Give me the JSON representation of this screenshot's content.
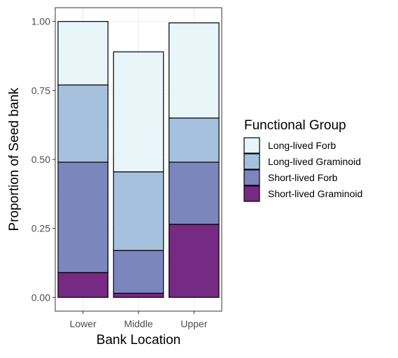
{
  "chart_data": {
    "type": "bar",
    "stacked": true,
    "categories": [
      "Lower",
      "Middle",
      "Upper"
    ],
    "series": [
      {
        "name": "Short-lived Graminoid",
        "color": "#762a83",
        "values": [
          0.09,
          0.015,
          0.265
        ]
      },
      {
        "name": "Short-lived Forb",
        "color": "#7b86bd",
        "values": [
          0.4,
          0.155,
          0.225
        ]
      },
      {
        "name": "Long-lived Graminoid",
        "color": "#a6c1dd",
        "values": [
          0.28,
          0.285,
          0.16
        ]
      },
      {
        "name": "Long-lived Forb",
        "color": "#e8f5f9",
        "values": [
          0.23,
          0.435,
          0.345
        ]
      }
    ],
    "xlabel": "Bank Location",
    "ylabel": "Proportion of Seed bank",
    "ylim": [
      -0.05,
      1.05
    ],
    "yticks": [
      0.0,
      0.25,
      0.5,
      0.75,
      1.0
    ],
    "ytick_labels": [
      "0.00",
      "0.25",
      "0.50",
      "0.75",
      "1.00"
    ],
    "legend": {
      "title": "Functional Group",
      "placement": "right",
      "entries": [
        "Long-lived Forb",
        "Long-lived Graminoid",
        "Short-lived Forb",
        "Short-lived Graminoid"
      ]
    },
    "grid": true,
    "theme": "bw"
  }
}
